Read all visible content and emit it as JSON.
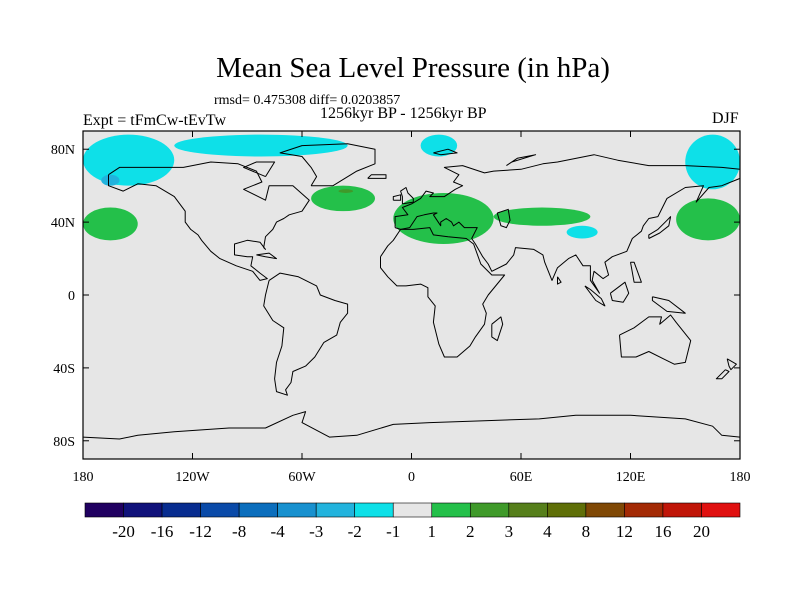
{
  "figure": {
    "title": "Mean Sea Level Pressure (in hPa)",
    "stats": "rmsd= 0.475308 diff= 0.0203857",
    "period": "1256kyr BP - 1256kyr BP",
    "experiment": "Expt = tFmCw-tEvTw",
    "season": "DJF"
  },
  "chart_data": {
    "type": "heatmap",
    "title": "Mean Sea Level Pressure (in hPa)",
    "xlabel": "",
    "ylabel": "",
    "xlim": [
      -180,
      180
    ],
    "ylim": [
      -90,
      90
    ],
    "x_ticks": [
      {
        "value": -180,
        "label": "180"
      },
      {
        "value": -120,
        "label": "120W"
      },
      {
        "value": -60,
        "label": "60W"
      },
      {
        "value": 0,
        "label": "0"
      },
      {
        "value": 60,
        "label": "60E"
      },
      {
        "value": 120,
        "label": "120E"
      },
      {
        "value": 180,
        "label": "180"
      }
    ],
    "y_ticks": [
      {
        "value": 80,
        "label": "80N"
      },
      {
        "value": 40,
        "label": "40N"
      },
      {
        "value": 0,
        "label": "0"
      },
      {
        "value": -40,
        "label": "40S"
      },
      {
        "value": -80,
        "label": "80S"
      }
    ],
    "colorbar": {
      "levels": [
        "-20",
        "-16",
        "-12",
        "-8",
        "-4",
        "-3",
        "-2",
        "-1",
        "1",
        "2",
        "3",
        "4",
        "8",
        "12",
        "16",
        "20"
      ],
      "colors": [
        "#200060",
        "#10127a",
        "#072c8f",
        "#0a4aa8",
        "#0b6ebd",
        "#1891cf",
        "#22b3dd",
        "#0ee0e8",
        "#e6e6e6",
        "#24c04a",
        "#3f9a2a",
        "#567f1b",
        "#5f6f08",
        "#7f4805",
        "#a32a04",
        "#c01508",
        "#e01010"
      ]
    },
    "background_value_range": "-1 to 1",
    "anomaly_regions": [
      {
        "name": "north-pacific-high-lat",
        "sign": "negative",
        "range": "-2 to -1",
        "lon_range": [
          -180,
          -130
        ],
        "lat_range": [
          60,
          88
        ]
      },
      {
        "name": "bering-core",
        "sign": "negative",
        "range": "-3 to -2",
        "lon_range": [
          -170,
          -160
        ],
        "lat_range": [
          60,
          66
        ]
      },
      {
        "name": "central-arctic",
        "sign": "negative",
        "range": "-2 to -1",
        "lon_range": [
          -130,
          -35
        ],
        "lat_range": [
          76,
          88
        ]
      },
      {
        "name": "svalbard",
        "sign": "negative",
        "range": "-2 to -1",
        "lon_range": [
          5,
          25
        ],
        "lat_range": [
          76,
          88
        ]
      },
      {
        "name": "siberian-arctic",
        "sign": "negative",
        "range": "-2 to -1",
        "lon_range": [
          150,
          180
        ],
        "lat_range": [
          58,
          88
        ]
      },
      {
        "name": "tibet",
        "sign": "negative",
        "range": "-2 to -1",
        "lon_range": [
          85,
          102
        ],
        "lat_range": [
          31,
          38
        ]
      },
      {
        "name": "north-atlantic",
        "sign": "positive",
        "range": "1 to 2",
        "lon_range": [
          -55,
          -20
        ],
        "lat_range": [
          46,
          60
        ]
      },
      {
        "name": "north-atlantic-core",
        "sign": "positive",
        "range": "2 to 3",
        "lon_range": [
          -40,
          -32
        ],
        "lat_range": [
          56,
          58
        ]
      },
      {
        "name": "mediterranean-europe",
        "sign": "positive",
        "range": "1 to 2",
        "lon_range": [
          -10,
          45
        ],
        "lat_range": [
          28,
          56
        ]
      },
      {
        "name": "central-asia",
        "sign": "positive",
        "range": "1 to 2",
        "lon_range": [
          45,
          98
        ],
        "lat_range": [
          38,
          48
        ]
      },
      {
        "name": "subtropical-north-pacific",
        "sign": "positive",
        "range": "1 to 2",
        "lon_range": [
          -180,
          -150
        ],
        "lat_range": [
          30,
          48
        ]
      },
      {
        "name": "northwest-pacific",
        "sign": "positive",
        "range": "1 to 2",
        "lon_range": [
          145,
          180
        ],
        "lat_range": [
          30,
          53
        ]
      }
    ]
  }
}
